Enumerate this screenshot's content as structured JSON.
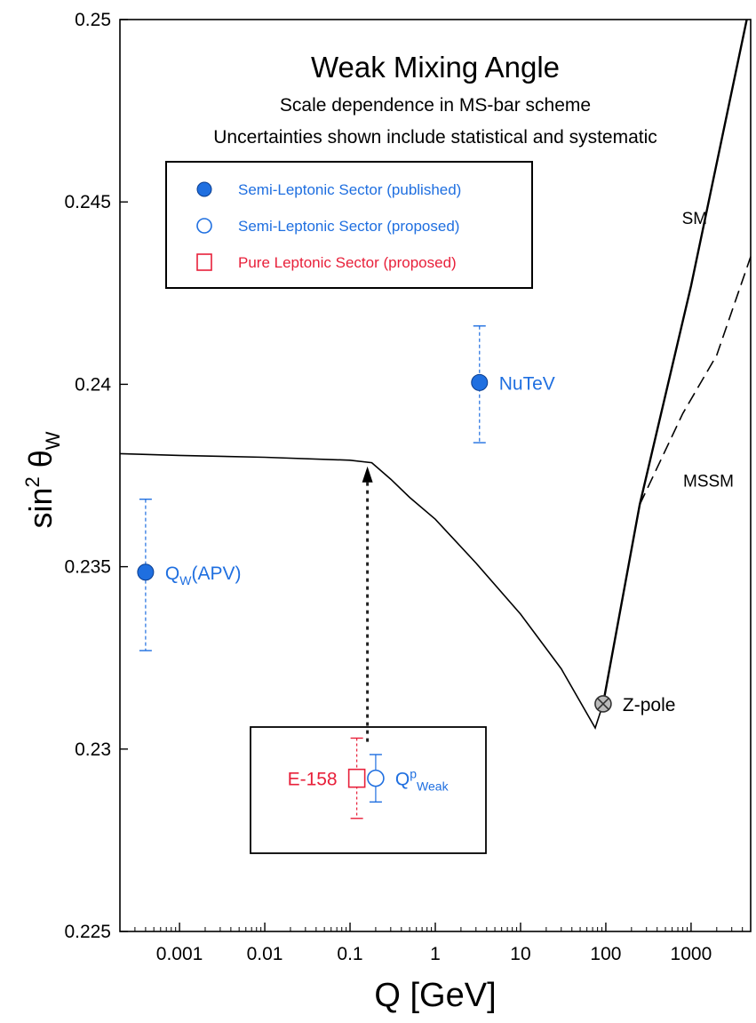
{
  "chart_data": {
    "type": "scatter",
    "title": "Weak Mixing Angle",
    "subtitle_lines": [
      "Scale dependence in MS-bar scheme",
      "Uncertainties shown include statistical and systematic"
    ],
    "xlabel": "Q [GeV]",
    "ylabel": {
      "base": "sin",
      "sup": "2",
      "theta": "θ",
      "sub": "W"
    },
    "x_scale": "log",
    "xlim": [
      0.0002,
      5000
    ],
    "ylim": [
      0.225,
      0.25
    ],
    "x_ticks": [
      {
        "value": 0.001,
        "label": "0.001"
      },
      {
        "value": 0.01,
        "label": "0.01"
      },
      {
        "value": 0.1,
        "label": "0.1"
      },
      {
        "value": 1,
        "label": "1"
      },
      {
        "value": 10,
        "label": "10"
      },
      {
        "value": 100,
        "label": "100"
      },
      {
        "value": 1000,
        "label": "1000"
      }
    ],
    "y_ticks": [
      {
        "value": 0.225,
        "label": "0.225"
      },
      {
        "value": 0.23,
        "label": "0.23"
      },
      {
        "value": 0.235,
        "label": "0.235"
      },
      {
        "value": 0.24,
        "label": "0.24"
      },
      {
        "value": 0.245,
        "label": "0.245"
      },
      {
        "value": 0.25,
        "label": "0.25"
      }
    ],
    "legend": {
      "placement": "upper-left",
      "entries": [
        {
          "label": "Semi-Leptonic Sector (published)",
          "marker": "filled-circle",
          "color": "#1f6fe0"
        },
        {
          "label": "Semi-Leptonic Sector (proposed)",
          "marker": "open-circle",
          "color": "#1f6fe0"
        },
        {
          "label": "Pure Leptonic Sector (proposed)",
          "marker": "open-square",
          "color": "#e8203a"
        }
      ]
    },
    "curves": [
      {
        "label": "",
        "style": "solid",
        "color": "#000000",
        "points": [
          [
            0.0002,
            0.2381
          ],
          [
            0.001,
            0.23805
          ],
          [
            0.01,
            0.238
          ],
          [
            0.1,
            0.23792
          ],
          [
            0.18,
            0.23785
          ],
          [
            0.3,
            0.2374
          ],
          [
            0.5,
            0.2369
          ],
          [
            1,
            0.2363
          ],
          [
            3,
            0.2351
          ],
          [
            10,
            0.2337
          ],
          [
            30,
            0.2322
          ],
          [
            75,
            0.23058
          ],
          [
            93,
            0.23124
          ]
        ]
      },
      {
        "label": "SM",
        "style": "solid",
        "color": "#000000",
        "points": [
          [
            93,
            0.23124
          ],
          [
            250,
            0.2367
          ],
          [
            1000,
            0.2427
          ],
          [
            4500,
            0.25
          ]
        ]
      },
      {
        "label": "MSSM",
        "style": "dashed",
        "color": "#000000",
        "points": [
          [
            250,
            0.2367
          ],
          [
            800,
            0.2392
          ],
          [
            2000,
            0.2408
          ],
          [
            5000,
            0.2435
          ]
        ]
      }
    ],
    "points": [
      {
        "label": "Q_W(APV)",
        "label_base": "Q",
        "label_sub": "W",
        "label_rest": "(APV)",
        "x": 0.0004,
        "y": 0.23485,
        "err_low": 0.00215,
        "err_high": 0.002,
        "marker": "filled-circle",
        "color": "#1f6fe0",
        "label_side": "right"
      },
      {
        "label": "NuTeV",
        "x": 3.3,
        "y": 0.24005,
        "err_low": 0.00165,
        "err_high": 0.00155,
        "marker": "filled-circle",
        "color": "#1f6fe0",
        "label_side": "right"
      },
      {
        "label": "Z-pole",
        "x": 93,
        "y": 0.23124,
        "err_low": 0.0,
        "err_high": 0.0,
        "marker": "crosshatch-circle",
        "color": "#333333",
        "label_side": "right",
        "label_color": "#000000"
      },
      {
        "label": "E-158",
        "x": 0.12,
        "y": 0.2292,
        "err_low": 0.0011,
        "err_high": 0.0011,
        "marker": "open-square",
        "color": "#e8203a",
        "label_side": "left"
      },
      {
        "label": "Qp_Weak",
        "label_base": "Q",
        "label_sup": "p",
        "label_sub": "Weak",
        "x": 0.2,
        "y": 0.2292,
        "err_low": 0.00065,
        "err_high": 0.00065,
        "marker": "open-circle",
        "color": "#1f6fe0",
        "label_side": "right"
      }
    ],
    "inset_box": {
      "contains": [
        "E-158",
        "Qp_Weak"
      ]
    },
    "arrow": {
      "x": 0.16,
      "y_from": 0.2302,
      "y_to": 0.23775,
      "style": "dashed"
    },
    "curve_labels": [
      {
        "text": "SM",
        "x": 1100,
        "y": 0.2444
      },
      {
        "text": "MSSM",
        "x": 1600,
        "y": 0.2372
      }
    ],
    "grid": false
  }
}
